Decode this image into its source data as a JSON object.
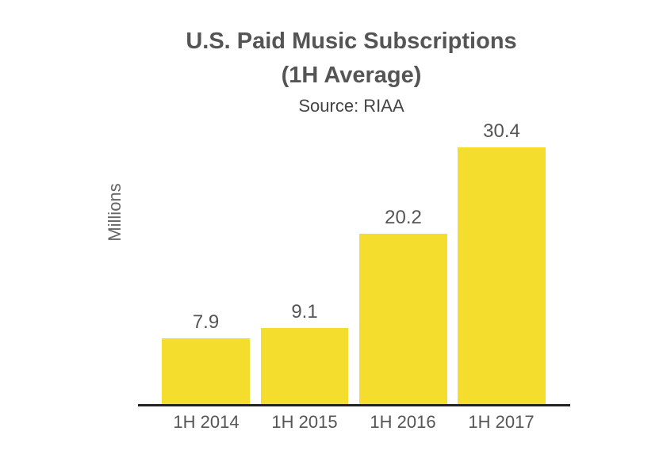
{
  "chart_data": {
    "type": "bar",
    "title": "U.S. Paid Music Subscriptions",
    "title_line2": "(1H Average)",
    "subtitle": "Source: RIAA",
    "xlabel": "",
    "ylabel": "Millions",
    "categories": [
      "1H 2014",
      "1H 2015",
      "1H 2016",
      "1H 2017"
    ],
    "values": [
      7.9,
      9.1,
      20.2,
      30.4
    ],
    "value_labels": [
      "7.9",
      "9.1",
      "20.2",
      "30.4"
    ],
    "bar_color": "#f4dd2c",
    "grid": false,
    "legend": null,
    "ylim": [
      0,
      30.4
    ]
  }
}
